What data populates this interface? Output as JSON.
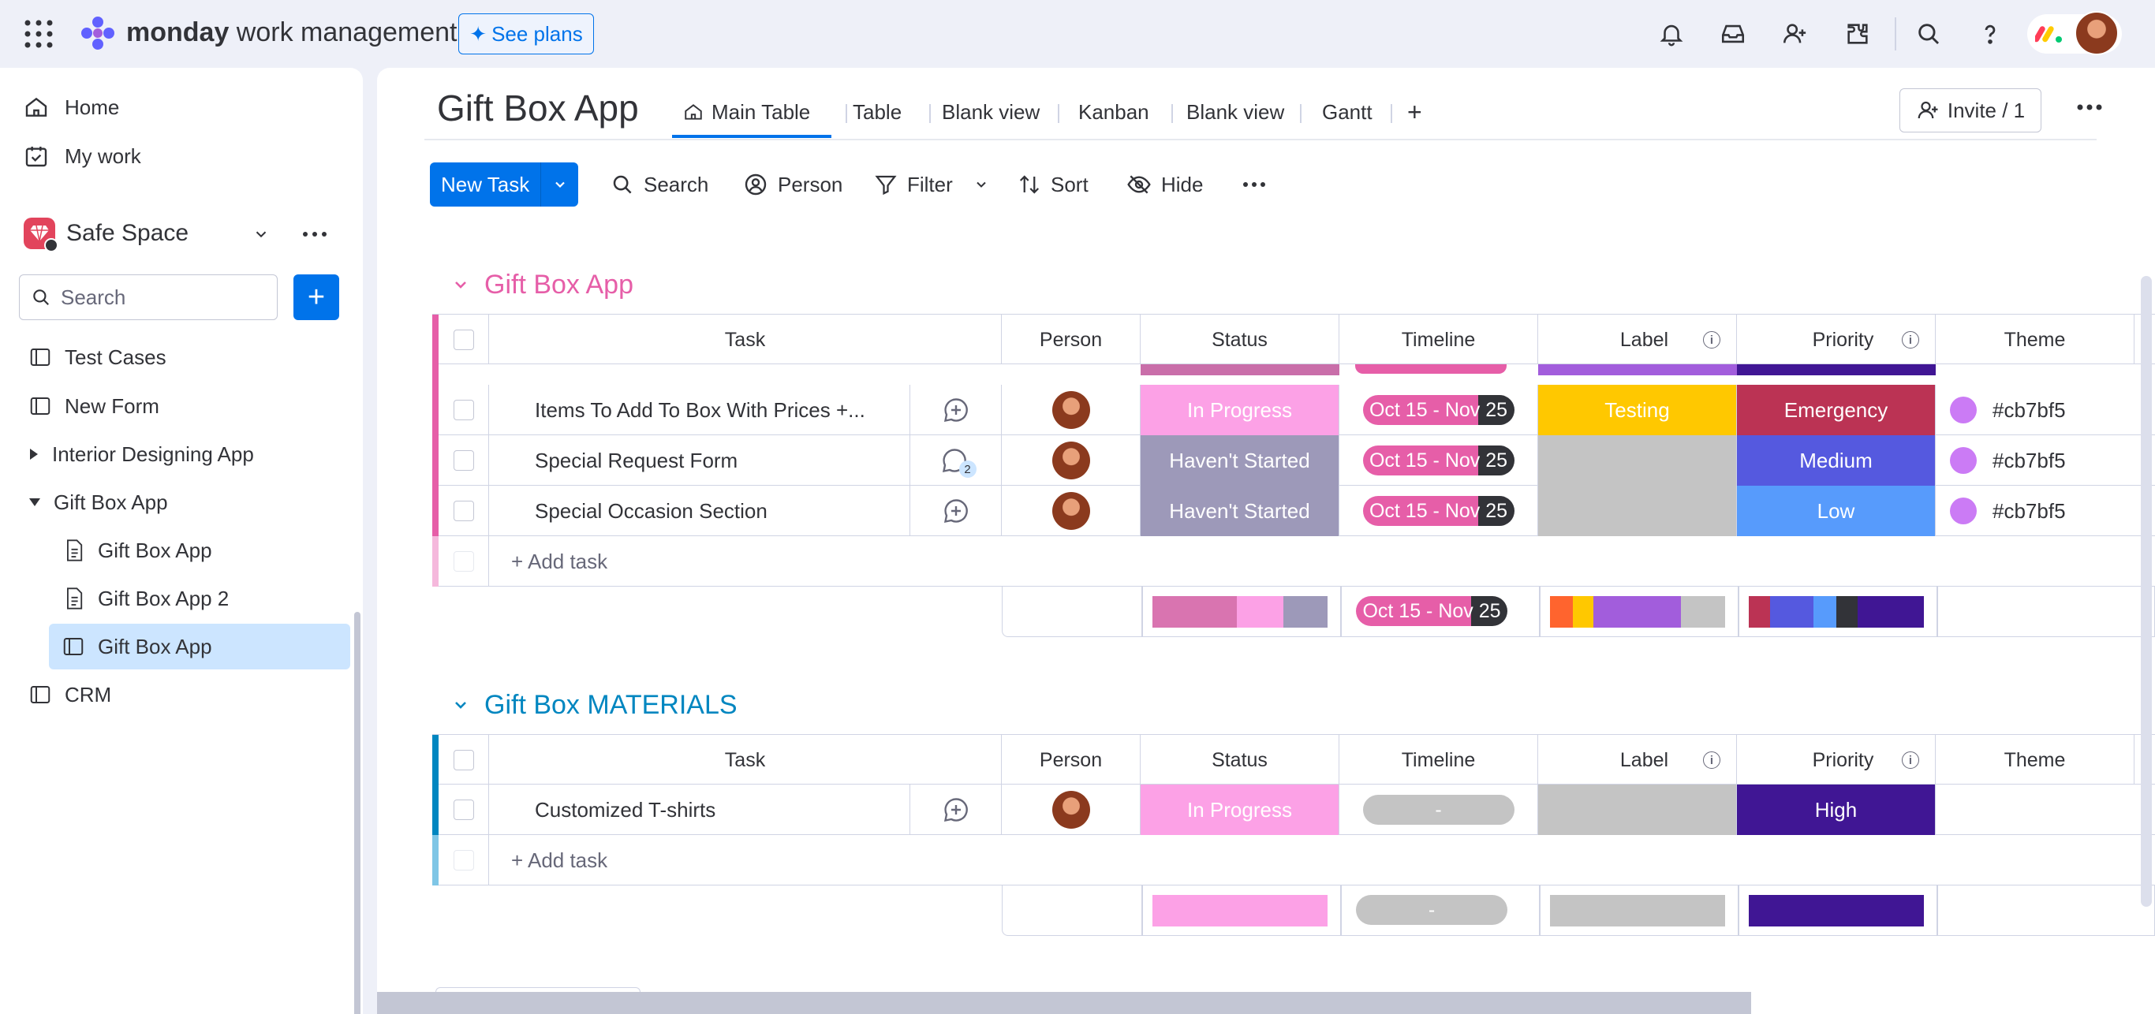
{
  "app": {
    "brand_bold": "monday",
    "brand_rest": " work management",
    "see_plans": "See plans"
  },
  "sidebar": {
    "home": "Home",
    "my_work": "My work",
    "workspace": "Safe Space",
    "search_placeholder": "Search",
    "items": [
      {
        "label": "Test Cases",
        "icon": "board-icon"
      },
      {
        "label": "New Form",
        "icon": "board-icon"
      },
      {
        "label": "Interior Designing App",
        "icon": "folder-collapsed"
      },
      {
        "label": "Gift Box App",
        "icon": "folder-expanded"
      },
      {
        "label": "Gift Box App",
        "icon": "doc-icon"
      },
      {
        "label": "Gift Box App 2",
        "icon": "doc-icon"
      },
      {
        "label": "Gift Box App",
        "icon": "board-icon",
        "selected": true
      },
      {
        "label": "CRM",
        "icon": "board-icon"
      }
    ]
  },
  "board": {
    "title": "Gift Box App",
    "tabs": [
      "Main Table",
      "Table",
      "Blank view",
      "Kanban",
      "Blank view",
      "Gantt"
    ],
    "invite": "Invite / 1",
    "toolbar": {
      "new_task": "New Task",
      "search": "Search",
      "person": "Person",
      "filter": "Filter",
      "sort": "Sort",
      "hide": "Hide"
    },
    "columns": [
      "Task",
      "Person",
      "Status",
      "Timeline",
      "Label",
      "Priority",
      "Theme"
    ]
  },
  "groups": [
    {
      "title": "Gift Box App",
      "color": "#e2445c",
      "title_color": "#e65ea8",
      "rows": [
        {
          "task": "Items To Add To Box With Prices +...",
          "status": "In Progress",
          "status_color": "#fca1e6",
          "timeline": "Oct 15 - Nov 25",
          "label": "Testing",
          "label_color": "#ffc800",
          "priority": "Emergency",
          "priority_color": "#bb3354",
          "theme": "#cb7bf5",
          "comments": ""
        },
        {
          "task": "Special Request Form",
          "status": "Haven't Started",
          "status_color": "#9d99b9",
          "timeline": "Oct 15 - Nov 25",
          "label": "",
          "label_color": "#c4c4c4",
          "priority": "Medium",
          "priority_color": "#5559df",
          "theme": "#cb7bf5",
          "comments": "2"
        },
        {
          "task": "Special Occasion Section",
          "status": "Haven't Started",
          "status_color": "#9d99b9",
          "timeline": "Oct 15 - Nov 25",
          "label": "",
          "label_color": "#c4c4c4",
          "priority": "Low",
          "priority_color": "#579bfc",
          "theme": "#cb7bf5",
          "comments": ""
        }
      ],
      "add_task": "+ Add task",
      "summary_timeline": "Oct 15 - Nov 25"
    },
    {
      "title": "Gift Box MATERIALS",
      "color": "#0086c0",
      "title_color": "#0086c0",
      "rows": [
        {
          "task": "Customized T-shirts",
          "status": "In Progress",
          "status_color": "#fca1e6",
          "timeline": "-",
          "label": "",
          "label_color": "#c4c4c4",
          "priority": "High",
          "priority_color": "#401694",
          "theme": "",
          "comments": ""
        }
      ],
      "add_task": "+ Add task",
      "summary_timeline": "-"
    }
  ]
}
